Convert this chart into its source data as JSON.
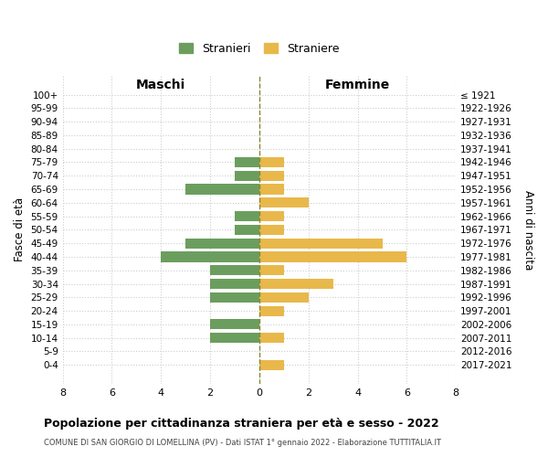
{
  "age_groups": [
    "100+",
    "95-99",
    "90-94",
    "85-89",
    "80-84",
    "75-79",
    "70-74",
    "65-69",
    "60-64",
    "55-59",
    "50-54",
    "45-49",
    "40-44",
    "35-39",
    "30-34",
    "25-29",
    "20-24",
    "15-19",
    "10-14",
    "5-9",
    "0-4"
  ],
  "birth_years": [
    "≤ 1921",
    "1922-1926",
    "1927-1931",
    "1932-1936",
    "1937-1941",
    "1942-1946",
    "1947-1951",
    "1952-1956",
    "1957-1961",
    "1962-1966",
    "1967-1971",
    "1972-1976",
    "1977-1981",
    "1982-1986",
    "1987-1991",
    "1992-1996",
    "1997-2001",
    "2002-2006",
    "2007-2011",
    "2012-2016",
    "2017-2021"
  ],
  "maschi": [
    0,
    0,
    0,
    0,
    0,
    1,
    1,
    3,
    0,
    1,
    1,
    3,
    4,
    2,
    2,
    2,
    0,
    2,
    2,
    0,
    0
  ],
  "femmine": [
    0,
    0,
    0,
    0,
    0,
    1,
    1,
    1,
    2,
    1,
    1,
    5,
    6,
    1,
    3,
    2,
    1,
    0,
    1,
    0,
    1
  ],
  "color_maschi": "#6b9e5e",
  "color_femmine": "#e8b84b",
  "color_grid": "#cccccc",
  "color_center_line": "#888833",
  "xlim": 8,
  "title": "Popolazione per cittadinanza straniera per età e sesso - 2022",
  "subtitle": "COMUNE DI SAN GIORGIO DI LOMELLINA (PV) - Dati ISTAT 1° gennaio 2022 - Elaborazione TUTTITALIA.IT",
  "ylabel_left": "Fasce di età",
  "ylabel_right": "Anni di nascita",
  "label_maschi": "Stranieri",
  "label_femmine": "Straniere",
  "header_left": "Maschi",
  "header_right": "Femmine",
  "bg_color": "#ffffff",
  "bar_height": 0.75
}
